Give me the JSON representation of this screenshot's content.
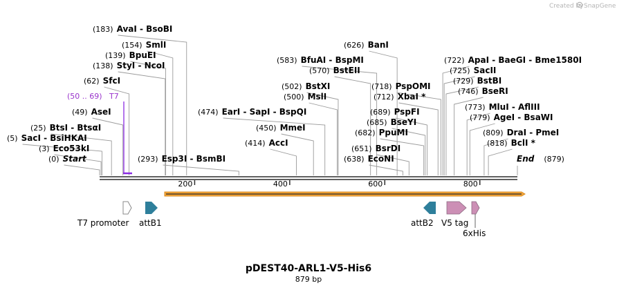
{
  "credit": {
    "text": "Created by",
    "brand": "SnapGene"
  },
  "plasmid": {
    "name": "pDEST40-ARL1-V5-His6",
    "length_label": "879 bp",
    "length": 879
  },
  "colors": {
    "leader": "#9a9a9a",
    "backbone": "#2b2b2b",
    "t7_label": "#9933cc",
    "t7_bar": "#8a2be2",
    "orf": "#f2a53a",
    "att": "#2e7f9b",
    "tag": "#cc8fb5",
    "promoter_fill": "#ffffff",
    "promoter_stroke": "#888888"
  },
  "sites": [
    {
      "pos": "(183)",
      "name": "AvaI  -  BsoBI",
      "bp": 183
    },
    {
      "pos": "(154)",
      "name": "SmlI",
      "bp": 154
    },
    {
      "pos": "(139)",
      "name": "BpuEI",
      "bp": 139
    },
    {
      "pos": "(138)",
      "name": "StyI  -  NcoI",
      "bp": 138
    },
    {
      "pos": "(62)",
      "name": "SfcI",
      "bp": 62
    },
    {
      "pos": "(49)",
      "name": "AseI",
      "bp": 49
    },
    {
      "pos": "(25)",
      "name": "BtsI  -  BtsαI",
      "bp": 25
    },
    {
      "pos": "(5)",
      "name": "SacI  -  BsiHKAI",
      "bp": 5
    },
    {
      "pos": "(3)",
      "name": "Eco53kI",
      "bp": 3
    },
    {
      "pos": "(293)",
      "name": "Esp3I  -  BsmBI",
      "bp": 293
    },
    {
      "pos": "(474)",
      "name": "EarI  -  SapI  -  BspQI",
      "bp": 474
    },
    {
      "pos": "(450)",
      "name": "MmeI",
      "bp": 450
    },
    {
      "pos": "(414)",
      "name": "AccI",
      "bp": 414
    },
    {
      "pos": "(626)",
      "name": "BanI",
      "bp": 626
    },
    {
      "pos": "(583)",
      "name": "BfuAI  -  BspMI",
      "bp": 583
    },
    {
      "pos": "(570)",
      "name": "BstEII",
      "bp": 570
    },
    {
      "pos": "(502)",
      "name": "BstXI",
      "bp": 502
    },
    {
      "pos": "(500)",
      "name": "MslI",
      "bp": 500
    },
    {
      "pos": "(651)",
      "name": "BsrDI",
      "bp": 651
    },
    {
      "pos": "(638)",
      "name": "EcoNI",
      "bp": 638
    },
    {
      "pos": "(718)",
      "name": "PspOMI",
      "bp": 718
    },
    {
      "pos": "(712)",
      "name": "XbaI *",
      "bp": 712
    },
    {
      "pos": "(689)",
      "name": "PspFI",
      "bp": 689
    },
    {
      "pos": "(685)",
      "name": "BseYI",
      "bp": 685
    },
    {
      "pos": "(682)",
      "name": "PpuMI",
      "bp": 682
    },
    {
      "pos": "(722)",
      "name": "ApaI  -  BaeGI  -  Bme1580I",
      "bp": 722
    },
    {
      "pos": "(725)",
      "name": "SacII",
      "bp": 725
    },
    {
      "pos": "(729)",
      "name": "BstBI",
      "bp": 729
    },
    {
      "pos": "(746)",
      "name": "BseRI",
      "bp": 746
    },
    {
      "pos": "(773)",
      "name": "MluI  -  AflIII",
      "bp": 773
    },
    {
      "pos": "(779)",
      "name": "AgeI  -  BsaWI",
      "bp": 779
    },
    {
      "pos": "(809)",
      "name": "DraI  -  PmeI",
      "bp": 809
    },
    {
      "pos": "(818)",
      "name": "BclI *",
      "bp": 818
    }
  ],
  "ends": {
    "start": {
      "pos": "(0)",
      "name": "Start"
    },
    "end": {
      "name": "End",
      "pos": "(879)"
    }
  },
  "t7_site": {
    "pos": "(50 .. 69)",
    "name": "T7",
    "start": 50,
    "end": 69
  },
  "ticks": [
    {
      "label": "200",
      "bp": 200
    },
    {
      "label": "400",
      "bp": 400
    },
    {
      "label": "600",
      "bp": 600
    },
    {
      "label": "800",
      "bp": 800
    }
  ],
  "features": [
    {
      "label": "T7 promoter",
      "kind": "promoter"
    },
    {
      "label": "attB1",
      "kind": "att"
    },
    {
      "label": "attB2",
      "kind": "att_rev"
    },
    {
      "label": "V5 tag",
      "kind": "tag"
    },
    {
      "label": "6xHis",
      "kind": "tag_small"
    }
  ]
}
